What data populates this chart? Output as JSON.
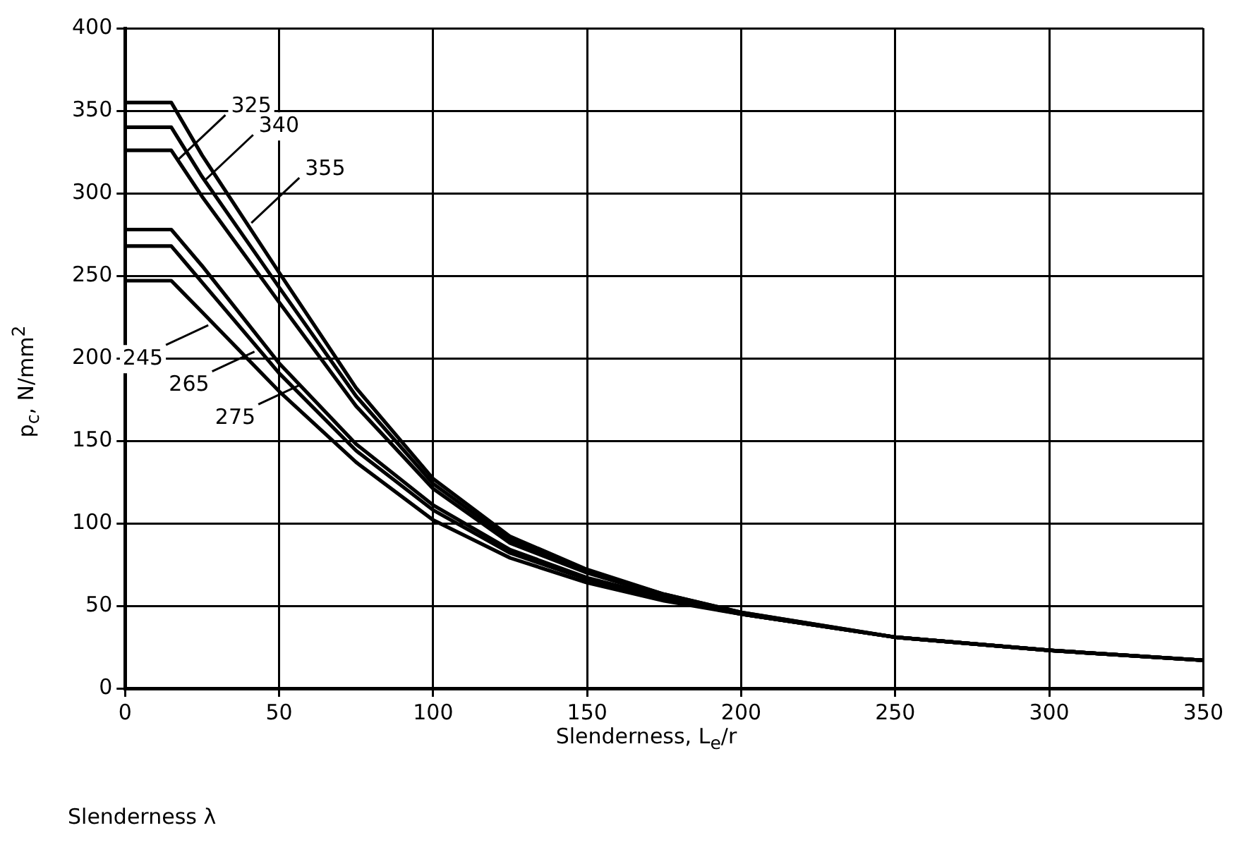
{
  "chart_data": {
    "type": "line",
    "xlabel": "Slenderness, L$_{e}$/r",
    "ylabel": "p$_{c}$, N/mm$^{2}$",
    "x": [
      0,
      15,
      25,
      50,
      75,
      100,
      125,
      150,
      175,
      200,
      250,
      300,
      350
    ],
    "series": [
      {
        "color": "#000000",
        "values": [
          247,
          247,
          228,
          180,
          137,
          102,
          79,
          64,
          53,
          45,
          31,
          23,
          17
        ]
      },
      {
        "color": "#000000",
        "values": [
          268,
          268,
          246,
          191,
          144,
          108,
          82,
          66,
          54,
          45,
          31,
          23,
          17
        ]
      },
      {
        "color": "#000000",
        "values": [
          278,
          278,
          256,
          197,
          148,
          111,
          84,
          67,
          55,
          45,
          31,
          23,
          17
        ]
      },
      {
        "color": "#000000",
        "values": [
          326,
          326,
          298,
          234,
          171,
          121,
          88,
          70,
          56,
          45,
          31,
          23,
          17
        ]
      },
      {
        "color": "#000000",
        "values": [
          340,
          340,
          310,
          243,
          177,
          124,
          90,
          71,
          57,
          46,
          31,
          23,
          17
        ]
      },
      {
        "color": "#000000",
        "values": [
          355,
          355,
          323,
          252,
          182,
          127,
          92,
          72,
          57,
          46,
          31,
          23,
          17
        ]
      }
    ],
    "xlim": [
      0,
      350
    ],
    "xticks": [
      0,
      50,
      100,
      150,
      200,
      250,
      300,
      350
    ],
    "ylim": [
      0,
      400
    ],
    "yticks": [
      0,
      50,
      100,
      150,
      200,
      250,
      300,
      350,
      400
    ],
    "grid": true,
    "legend": false,
    "marker": "none",
    "line_style": "solid",
    "annotations": [
      {
        "text": "245",
        "x": 27,
        "y": 220
      },
      {
        "text": "265",
        "x": 42,
        "y": 204
      },
      {
        "text": "275",
        "x": 57,
        "y": 184
      },
      {
        "text": "325",
        "x": 17,
        "y": 320
      },
      {
        "text": "340",
        "x": 26,
        "y": 308
      },
      {
        "text": "355",
        "x": 41,
        "y": 282
      },
      "Slenderness λ"
    ]
  }
}
